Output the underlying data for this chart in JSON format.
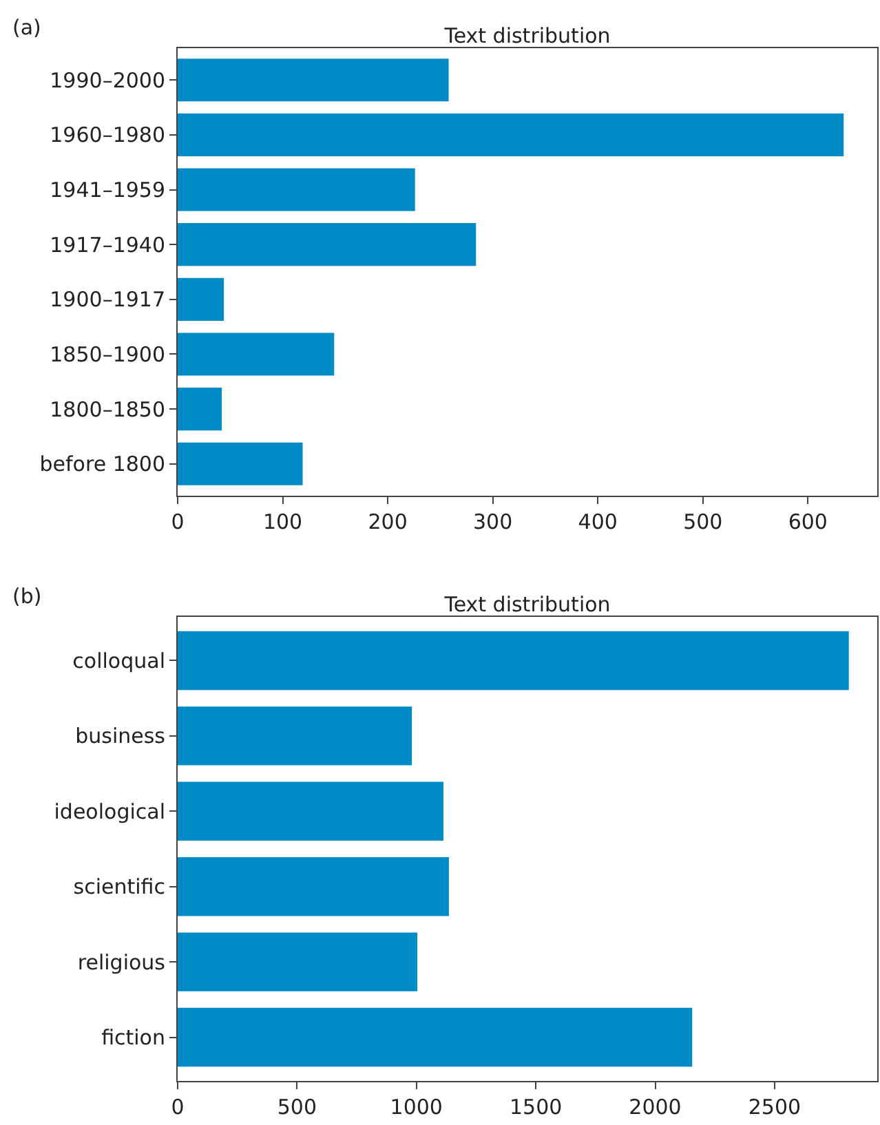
{
  "chart_data": [
    {
      "type": "bar",
      "orientation": "horizontal",
      "title": "Text distribution",
      "annotations": [
        "(a)"
      ],
      "categories": [
        "1990–2000",
        "1960–1980",
        "1941–1959",
        "1917–1940",
        "1900–1917",
        "1850–1900",
        "1800–1850",
        "before 1800"
      ],
      "values": [
        258,
        634,
        226,
        284,
        44,
        149,
        42,
        119
      ],
      "color": "#008bc6",
      "xlim": [
        0,
        666
      ],
      "xticks": [
        0,
        100,
        200,
        300,
        400,
        500,
        600
      ],
      "grid": false,
      "legend": false
    },
    {
      "type": "bar",
      "orientation": "horizontal",
      "title": "Text distribution",
      "annotations": [
        "(b)"
      ],
      "categories": [
        "colloqual",
        "business",
        "ideological",
        "scientific",
        "religious",
        "fiction"
      ],
      "values": [
        2811,
        981,
        1113,
        1136,
        1004,
        2155
      ],
      "color": "#008bc6",
      "xlim": [
        0,
        2930
      ],
      "xticks": [
        0,
        500,
        1000,
        1500,
        2000,
        2500
      ],
      "grid": false,
      "legend": false
    }
  ]
}
